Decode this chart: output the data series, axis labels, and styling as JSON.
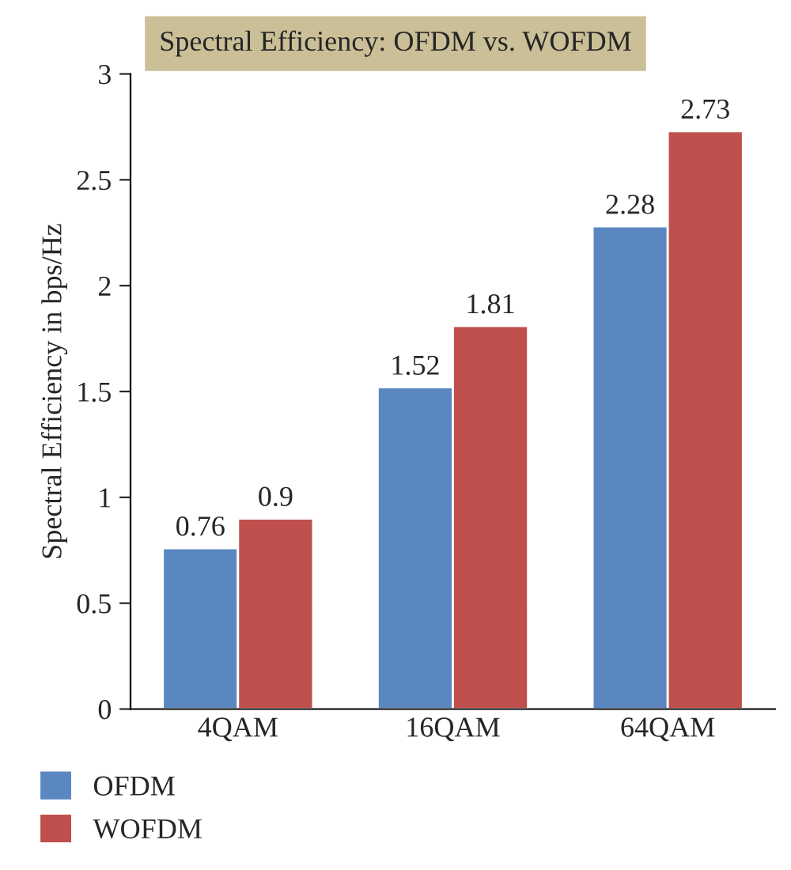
{
  "chart_data": {
    "type": "bar",
    "title": "Spectral Efficiency: OFDM vs. WOFDM",
    "ylabel": "Spectral Efficiency in bps/Hz",
    "categories": [
      "4QAM",
      "16QAM",
      "64QAM"
    ],
    "series": [
      {
        "name": "OFDM",
        "color": "#5b87c1",
        "values": [
          0.76,
          1.52,
          2.28
        ]
      },
      {
        "name": "WOFDM",
        "color": "#c0504d",
        "values": [
          0.9,
          1.81,
          2.73
        ]
      }
    ],
    "ylim": [
      0,
      3
    ],
    "yticks": [
      0,
      0.5,
      1,
      1.5,
      2,
      2.5,
      3
    ],
    "grid": false,
    "legend": "bottom",
    "data_labels": true
  }
}
